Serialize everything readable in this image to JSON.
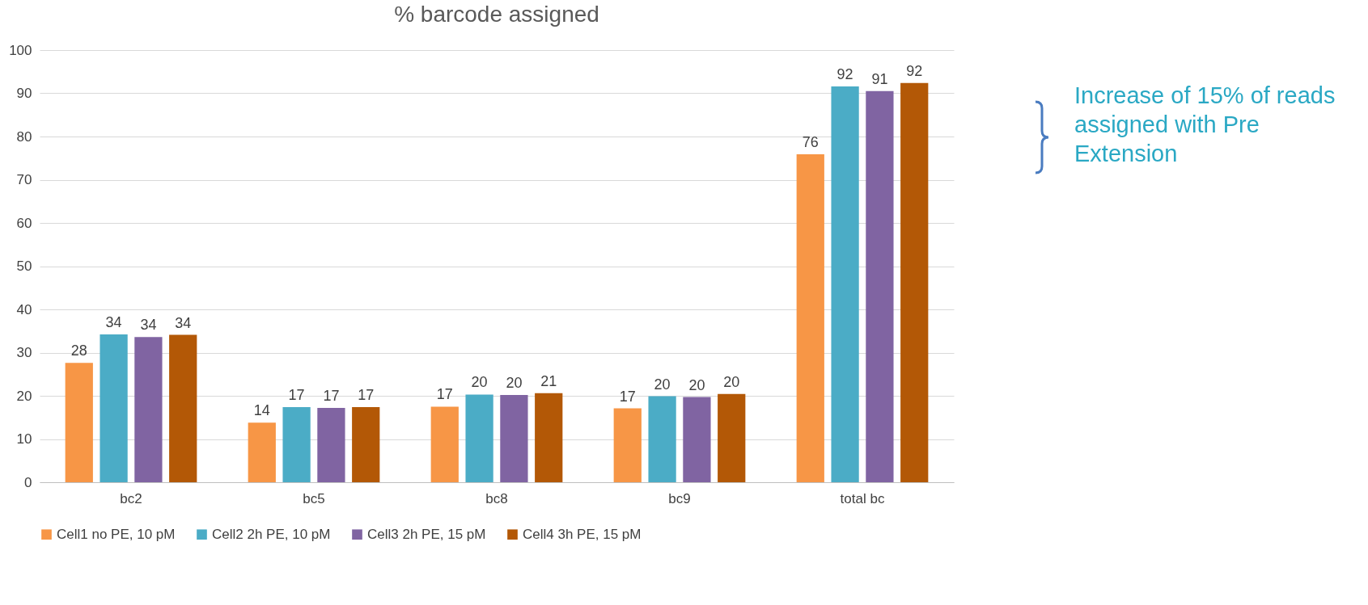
{
  "chart_data": {
    "type": "bar",
    "title": "% barcode assigned",
    "categories": [
      "bc2",
      "bc5",
      "bc8",
      "bc9",
      "total bc"
    ],
    "series": [
      {
        "name": "Cell1 no PE, 10 pM",
        "color": "#f79646",
        "values": [
          27.6,
          13.8,
          17.5,
          17.1,
          75.9
        ],
        "value_labels": [
          "28",
          "14",
          "17",
          "17",
          "76"
        ]
      },
      {
        "name": "Cell2 2h PE, 10 pM",
        "color": "#4bacc6",
        "values": [
          34.2,
          17.4,
          20.3,
          19.9,
          91.6
        ],
        "value_labels": [
          "34",
          "17",
          "20",
          "20",
          "92"
        ]
      },
      {
        "name": "Cell3 2h PE, 15 pM",
        "color": "#8064a2",
        "values": [
          33.6,
          17.2,
          20.2,
          19.7,
          90.5
        ],
        "value_labels": [
          "34",
          "17",
          "20",
          "20",
          "91"
        ]
      },
      {
        "name": "Cell4 3h PE, 15 pM",
        "color": "#b35806",
        "values": [
          34.1,
          17.4,
          20.6,
          20.4,
          92.4
        ],
        "value_labels": [
          "34",
          "17",
          "21",
          "20",
          "92"
        ]
      }
    ],
    "ylim": [
      0,
      100
    ],
    "yticks": [
      0,
      10,
      20,
      30,
      40,
      50,
      60,
      70,
      80,
      90,
      100
    ],
    "grid": "y",
    "legend": "bottom",
    "annotations": [
      "Increase of 15% of reads assigned with Pre Extension"
    ]
  }
}
